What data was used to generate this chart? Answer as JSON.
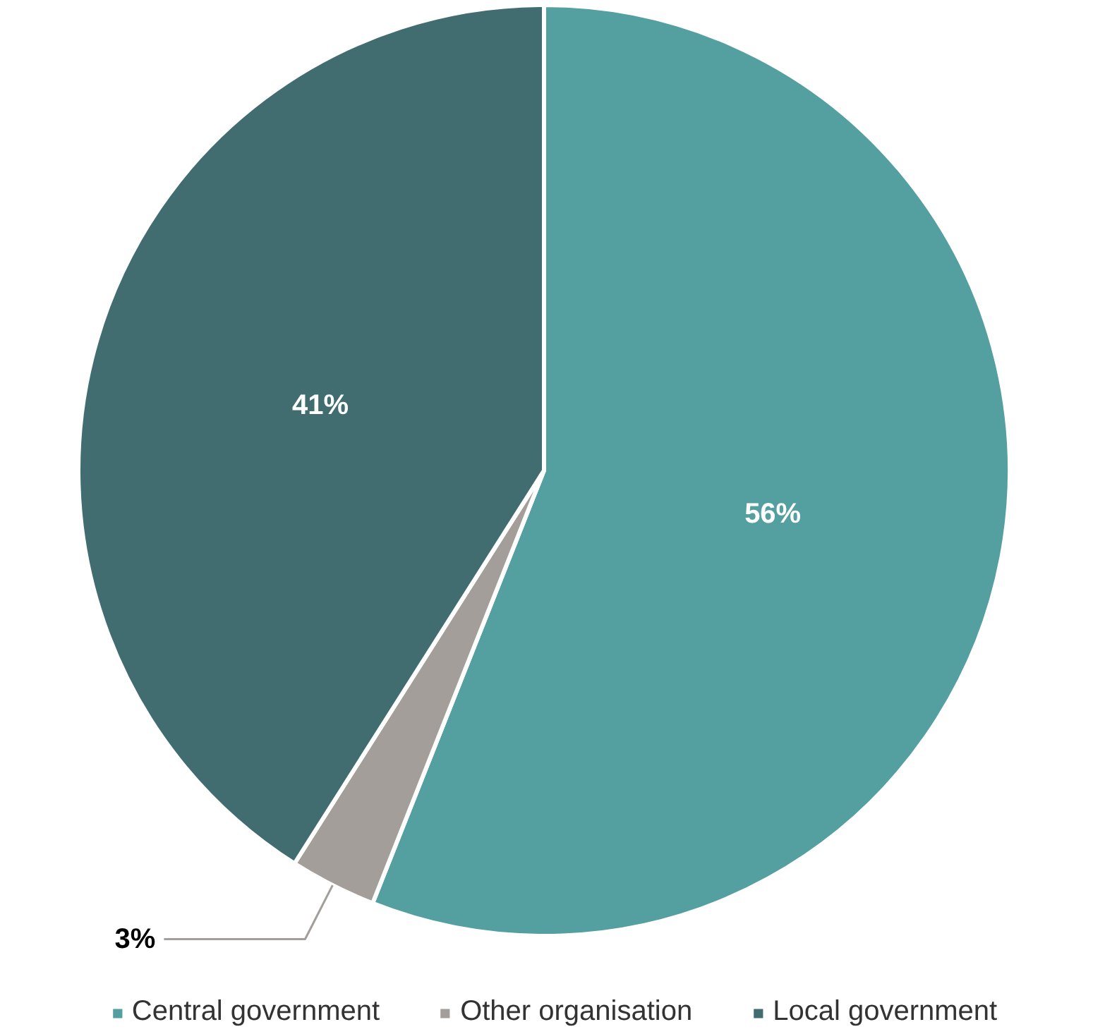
{
  "chart_data": {
    "type": "pie",
    "categories": [
      "Central government",
      "Other organisation",
      "Local government"
    ],
    "values": [
      56,
      3,
      41
    ],
    "colors": [
      "#549fa0",
      "#a39e99",
      "#416d70"
    ],
    "value_labels": [
      "56%",
      "3%",
      "41%"
    ],
    "legend": "bottom"
  }
}
